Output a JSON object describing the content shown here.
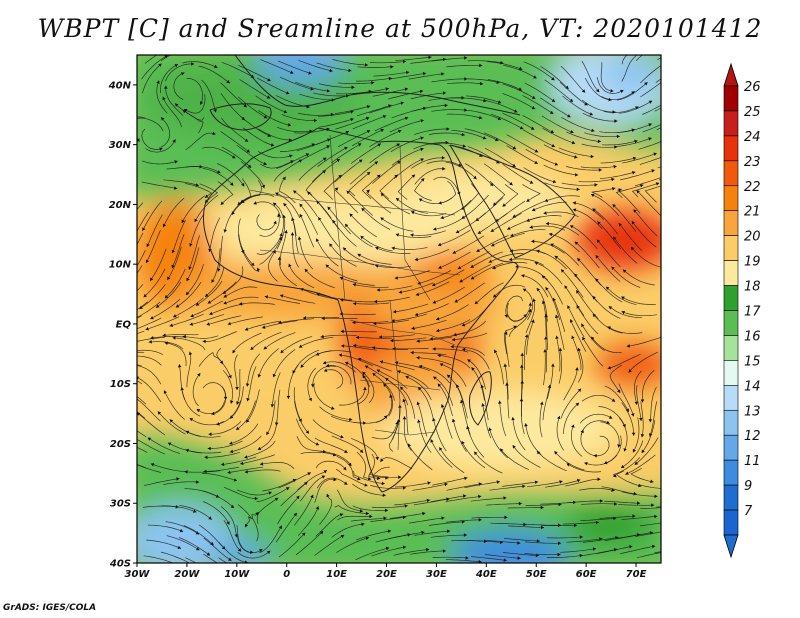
{
  "title": "WBPT [C] and Sreamline at 500hPa, VT: 2020101412",
  "credit": "GrADS: IGES/COLA",
  "chart_data": {
    "type": "heatmap",
    "variable": "Wet-bulb potential temperature",
    "units": "C",
    "level": "500hPa",
    "valid_time": "2020101412",
    "overlay": "streamlines",
    "lon_range": [
      -30,
      75
    ],
    "lat_range": [
      -40,
      45
    ],
    "lat_ticks": [
      {
        "value": 40,
        "label": "40N"
      },
      {
        "value": 30,
        "label": "30N"
      },
      {
        "value": 20,
        "label": "20N"
      },
      {
        "value": 10,
        "label": "10N"
      },
      {
        "value": 0,
        "label": "EQ"
      },
      {
        "value": -10,
        "label": "10S"
      },
      {
        "value": -20,
        "label": "20S"
      },
      {
        "value": -30,
        "label": "30S"
      },
      {
        "value": -40,
        "label": "40S"
      }
    ],
    "lon_ticks": [
      {
        "value": -30,
        "label": "30W"
      },
      {
        "value": -20,
        "label": "20W"
      },
      {
        "value": -10,
        "label": "10W"
      },
      {
        "value": 0,
        "label": "0"
      },
      {
        "value": 10,
        "label": "10E"
      },
      {
        "value": 20,
        "label": "20E"
      },
      {
        "value": 30,
        "label": "30E"
      },
      {
        "value": 40,
        "label": "40E"
      },
      {
        "value": 50,
        "label": "50E"
      },
      {
        "value": 60,
        "label": "60E"
      },
      {
        "value": 70,
        "label": "70E"
      }
    ],
    "colorbar": {
      "labels": [
        "26",
        "25",
        "24",
        "23",
        "22",
        "21",
        "20",
        "19",
        "18",
        "17",
        "16",
        "15",
        "14",
        "13",
        "12",
        "11",
        "9",
        "7"
      ],
      "colors": [
        "#a00000",
        "#c81e1e",
        "#e8320c",
        "#f05a0a",
        "#f5820f",
        "#f8a53b",
        "#fbcd68",
        "#fde99e",
        "#2da02d",
        "#5abe55",
        "#a6e29a",
        "#e6f8f2",
        "#b8dcf8",
        "#8cc4f0",
        "#64a8e8",
        "#3c8ce0",
        "#1e6ed2",
        "#1e64d0"
      ],
      "top_color": "#b41414",
      "bottom_color": "#1e6ed2"
    },
    "fields": [
      {
        "region": "north-belt",
        "lon": [
          -30,
          75
        ],
        "lat": [
          28,
          45
        ],
        "value": 17
      },
      {
        "region": "northwest-cold-core",
        "lon": [
          -15,
          -5
        ],
        "lat": [
          38,
          45
        ],
        "value": 13
      },
      {
        "region": "northeast-cold-core",
        "lon": [
          55,
          75
        ],
        "lat": [
          32,
          45
        ],
        "value": 14
      },
      {
        "region": "atlantic-warm",
        "lon": [
          -30,
          -18
        ],
        "lat": [
          5,
          17
        ],
        "value": 22
      },
      {
        "region": "central-africa-warm",
        "lon": [
          15,
          35
        ],
        "lat": [
          -15,
          5
        ],
        "value": 23
      },
      {
        "region": "arabian-sea-warm",
        "lon": [
          58,
          75
        ],
        "lat": [
          10,
          20
        ],
        "value": 23
      },
      {
        "region": "indian-ocean-warm",
        "lon": [
          62,
          75
        ],
        "lat": [
          -12,
          -2
        ],
        "value": 22
      },
      {
        "region": "tropical-belt",
        "lon": [
          -30,
          75
        ],
        "lat": [
          -25,
          25
        ],
        "value": 20
      },
      {
        "region": "south-belt",
        "lon": [
          -30,
          75
        ],
        "lat": [
          -40,
          -25
        ],
        "value": 17
      },
      {
        "region": "southwest-cold-core",
        "lon": [
          -30,
          -10
        ],
        "lat": [
          -40,
          -30
        ],
        "value": 13
      },
      {
        "region": "south-indian-cold-core",
        "lon": [
          30,
          55
        ],
        "lat": [
          -40,
          -35
        ],
        "value": 12
      }
    ]
  }
}
